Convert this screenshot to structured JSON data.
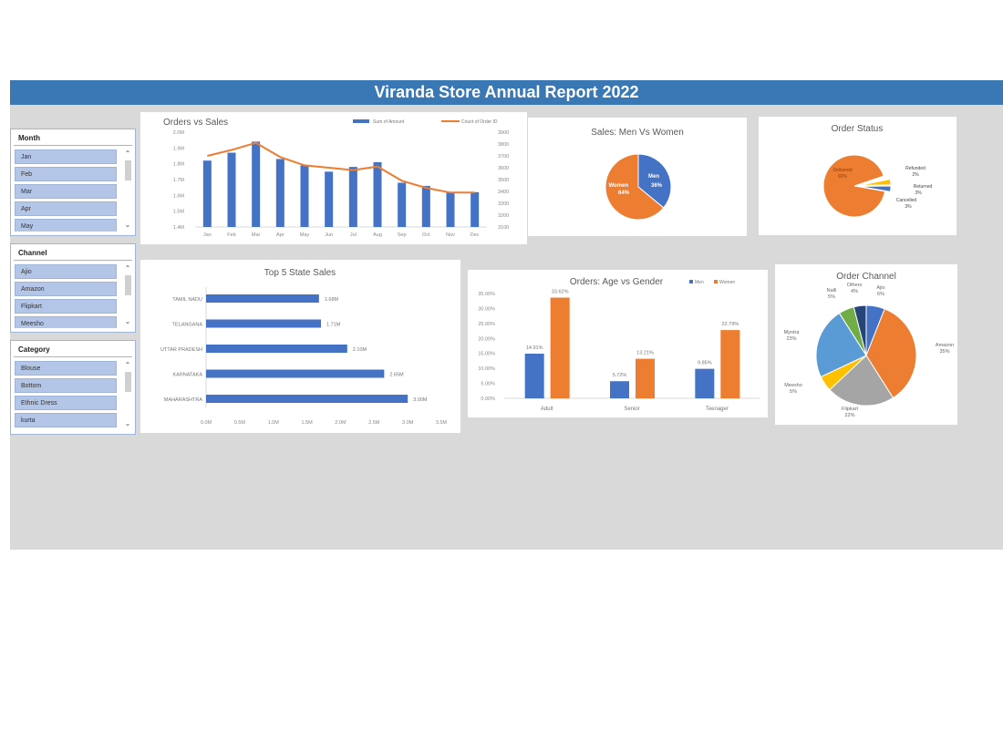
{
  "header": {
    "title": "Viranda Store Annual Report 2022",
    "color": "#3a77b5"
  },
  "slicers": [
    {
      "title": "Month",
      "items": [
        "Jan",
        "Feb",
        "Mar",
        "Apr",
        "May"
      ]
    },
    {
      "title": "Channel",
      "items": [
        "Ajio",
        "Amazon",
        "Flipkart",
        "Meesho"
      ]
    },
    {
      "title": "Category",
      "items": [
        "Blouse",
        "Bottom",
        "Ethnic Dress",
        "kurta"
      ]
    }
  ],
  "colors": {
    "blue": "#4472c4",
    "orange": "#ed7d31",
    "gray": "#a5a5a5",
    "yellow": "#ffc000",
    "lightblue": "#5b9bd5",
    "green": "#70ad47",
    "navy": "#264478"
  },
  "chart_data": [
    {
      "type": "bar+line",
      "title": "Orders vs Sales",
      "categories": [
        "Jan",
        "Feb",
        "Mar",
        "Apr",
        "May",
        "Jun",
        "Jul",
        "Aug",
        "Sep",
        "Oct",
        "Nov",
        "Dec"
      ],
      "series": [
        {
          "name": "Sum of Amount",
          "axis": "left",
          "type": "bar",
          "values": [
            1.82,
            1.87,
            1.94,
            1.83,
            1.79,
            1.75,
            1.78,
            1.81,
            1.68,
            1.66,
            1.62,
            1.62
          ]
        },
        {
          "name": "Count of Order ID",
          "axis": "right",
          "type": "line",
          "values": [
            3700,
            3750,
            3810,
            3690,
            3620,
            3600,
            3580,
            3610,
            3490,
            3430,
            3390,
            3390
          ]
        }
      ],
      "ylim_left": [
        1.4,
        2.0
      ],
      "yticks_left": [
        "1.4M",
        "1.5M",
        "1.6M",
        "1.7M",
        "1.8M",
        "1.9M",
        "2.0M"
      ],
      "ylim_right": [
        3100,
        3900
      ],
      "yticks_right": [
        "3100",
        "3200",
        "3300",
        "3400",
        "3500",
        "3600",
        "3700",
        "3800",
        "3900"
      ],
      "legend_position": "top-right"
    },
    {
      "type": "pie",
      "title": "Sales: Men Vs Women",
      "labels": [
        "Men",
        "Women"
      ],
      "values": [
        36,
        64
      ],
      "display": [
        "Men 36%",
        "Women 64%"
      ]
    },
    {
      "type": "pie",
      "title": "Order Status",
      "labels": [
        "Delivered",
        "Refunded",
        "Returned",
        "Cancelled"
      ],
      "values": [
        92,
        2,
        3,
        3
      ],
      "display": [
        "Delivered 92%",
        "Refunded 2%",
        "Returned 3%",
        "Cancelled 3%"
      ]
    },
    {
      "type": "bar",
      "orientation": "horizontal",
      "title": "Top 5 State Sales",
      "categories": [
        "TAMIL NADU",
        "TELANGANA",
        "UTTAR PRADESH",
        "KARNATAKA",
        "MAHARASHTRA"
      ],
      "values": [
        1.68,
        1.71,
        2.1,
        2.65,
        3.0
      ],
      "labels": [
        "1.68M",
        "1.71M",
        "2.10M",
        "2.65M",
        "3.00M"
      ],
      "xlim": [
        0,
        3.5
      ],
      "xticks": [
        "0.0M",
        "0.5M",
        "1.0M",
        "1.5M",
        "2.0M",
        "2.5M",
        "3.0M",
        "3.5M"
      ]
    },
    {
      "type": "bar",
      "title": "Orders: Age vs Gender",
      "categories": [
        "Adult",
        "Senior",
        "Teenager"
      ],
      "series": [
        {
          "name": "Men",
          "values": [
            14.91,
            5.72,
            9.85
          ],
          "labels": [
            "14.91%",
            "5.72%",
            "9.85%"
          ]
        },
        {
          "name": "Women",
          "values": [
            33.62,
            13.21,
            22.79
          ],
          "labels": [
            "33.62%",
            "13.21%",
            "22.79%"
          ]
        }
      ],
      "ylim": [
        0,
        35
      ],
      "yticks": [
        "0.00%",
        "5.00%",
        "10.00%",
        "15.00%",
        "20.00%",
        "25.00%",
        "30.00%",
        "35.00%"
      ],
      "legend_position": "top-right"
    },
    {
      "type": "pie",
      "title": "Order Channel",
      "labels": [
        "Ajio",
        "Amazon",
        "Flipkart",
        "Meesho",
        "Myntra",
        "Nalli",
        "Others"
      ],
      "values": [
        6,
        35,
        22,
        5,
        23,
        5,
        4
      ],
      "display": [
        "Ajio 6%",
        "Amazon 35%",
        "Flipkart 22%",
        "Meesho 5%",
        "Myntra 23%",
        "Nalli 5%",
        "Others 4%"
      ]
    }
  ]
}
